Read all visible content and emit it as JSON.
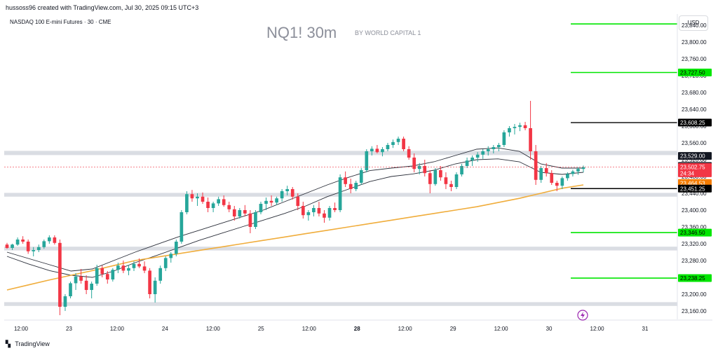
{
  "header": {
    "created_text": "hussoss96 created with TradingView.com, Jul 30, 2025 09:15 UTC+3",
    "symbol": "NASDAQ 100 E-mini Futures · 30 · CME"
  },
  "title": {
    "main": "NQ1! 30m",
    "sub": "BY WORLD CAPITAL 1"
  },
  "currency_label": "USD",
  "footer": {
    "brand": "TradingView"
  },
  "colors": {
    "bull": "#26a69a",
    "bear": "#f23645",
    "ma_200": "#f0ad3c",
    "ma_dark": "#2a2e39",
    "support_zone": "#dadde3",
    "target_green": "#00e600"
  },
  "icons": {
    "flash": "flash-icon",
    "logo": "tradingview-logo-icon"
  },
  "chart_data": {
    "type": "candlestick",
    "y_axis": {
      "ylim": [
        23140,
        23860
      ],
      "ticks": [
        "23,160.00",
        "23,200.00",
        "23,240.00",
        "23,280.00",
        "23,320.00",
        "23,360.00",
        "23,400.00",
        "23,440.00",
        "23,480.00",
        "23,520.00",
        "23,560.00",
        "23,600.00",
        "23,640.00",
        "23,680.00",
        "23,720.00",
        "23,760.00",
        "23,800.00",
        "23,840.00"
      ]
    },
    "x_axis": {
      "labels": [
        "12:00",
        "23",
        "12:00",
        "24",
        "12:00",
        "25",
        "12:00",
        "28",
        "12:00",
        "29",
        "12:00",
        "30",
        "12:00",
        "31"
      ]
    },
    "price_labels": [
      {
        "value": 23608.25,
        "text": "23,608.25",
        "style": "black"
      },
      {
        "value": 23529.0,
        "text": "23,529.00",
        "style": "dark"
      },
      {
        "value": 23504.96,
        "text": "23,504.96",
        "style": "dark"
      },
      {
        "value": 23502.75,
        "text": "23,502.75",
        "style": "red",
        "countdown": "24:34"
      },
      {
        "value": 23464.53,
        "text": "23,464.53",
        "style": "orange"
      },
      {
        "value": 23451.25,
        "text": "23,451.25",
        "style": "black"
      },
      {
        "value": 23727.5,
        "text": "23,727.50",
        "style": "green"
      },
      {
        "value": 23346.5,
        "text": "23,346.50",
        "style": "green"
      },
      {
        "value": 23238.25,
        "text": "23,238.25",
        "style": "green"
      }
    ],
    "levels": [
      {
        "value": 23843,
        "color": "green"
      },
      {
        "value": 23727.5,
        "color": "green"
      },
      {
        "value": 23608.25,
        "color": "black"
      },
      {
        "value": 23451.25,
        "color": "black"
      },
      {
        "value": 23346.5,
        "color": "green"
      },
      {
        "value": 23238.25,
        "color": "green"
      }
    ],
    "zones": [
      {
        "from": 23531,
        "to": 23541
      },
      {
        "from": 23432,
        "to": 23441
      },
      {
        "from": 23304,
        "to": 23313
      },
      {
        "from": 23172,
        "to": 23181
      }
    ],
    "candles": [
      [
        23318,
        23322,
        23308,
        23310
      ],
      [
        23310,
        23320,
        23305,
        23318
      ],
      [
        23318,
        23335,
        23315,
        23330
      ],
      [
        23330,
        23338,
        23320,
        23325
      ],
      [
        23325,
        23330,
        23296,
        23302
      ],
      [
        23302,
        23312,
        23290,
        23305
      ],
      [
        23305,
        23318,
        23300,
        23312
      ],
      [
        23312,
        23330,
        23308,
        23326
      ],
      [
        23326,
        23340,
        23320,
        23335
      ],
      [
        23335,
        23340,
        23318,
        23322
      ],
      [
        23322,
        23330,
        23150,
        23170
      ],
      [
        23170,
        23200,
        23160,
        23195
      ],
      [
        23195,
        23230,
        23190,
        23226
      ],
      [
        23226,
        23250,
        23210,
        23242
      ],
      [
        23242,
        23260,
        23225,
        23232
      ],
      [
        23232,
        23245,
        23200,
        23210
      ],
      [
        23210,
        23230,
        23190,
        23225
      ],
      [
        23225,
        23270,
        23220,
        23262
      ],
      [
        23262,
        23268,
        23240,
        23248
      ],
      [
        23248,
        23255,
        23225,
        23235
      ],
      [
        23235,
        23262,
        23230,
        23258
      ],
      [
        23258,
        23275,
        23250,
        23268
      ],
      [
        23268,
        23280,
        23250,
        23256
      ],
      [
        23256,
        23270,
        23245,
        23262
      ],
      [
        23262,
        23278,
        23255,
        23272
      ],
      [
        23272,
        23285,
        23262,
        23266
      ],
      [
        23266,
        23278,
        23250,
        23256
      ],
      [
        23256,
        23262,
        23190,
        23200
      ],
      [
        23200,
        23240,
        23180,
        23232
      ],
      [
        23232,
        23268,
        23225,
        23262
      ],
      [
        23262,
        23290,
        23255,
        23286
      ],
      [
        23286,
        23300,
        23275,
        23296
      ],
      [
        23296,
        23330,
        23290,
        23325
      ],
      [
        23325,
        23400,
        23320,
        23395
      ],
      [
        23395,
        23445,
        23390,
        23438
      ],
      [
        23438,
        23448,
        23420,
        23428
      ],
      [
        23428,
        23440,
        23410,
        23432
      ],
      [
        23432,
        23442,
        23415,
        23420
      ],
      [
        23420,
        23430,
        23395,
        23405
      ],
      [
        23405,
        23420,
        23395,
        23416
      ],
      [
        23416,
        23432,
        23410,
        23426
      ],
      [
        23426,
        23435,
        23408,
        23412
      ],
      [
        23412,
        23420,
        23395,
        23402
      ],
      [
        23402,
        23410,
        23375,
        23385
      ],
      [
        23385,
        23405,
        23380,
        23400
      ],
      [
        23400,
        23412,
        23385,
        23392
      ],
      [
        23392,
        23400,
        23345,
        23360
      ],
      [
        23360,
        23400,
        23355,
        23395
      ],
      [
        23395,
        23420,
        23390,
        23415
      ],
      [
        23415,
        23430,
        23400,
        23422
      ],
      [
        23422,
        23435,
        23410,
        23418
      ],
      [
        23418,
        23432,
        23412,
        23428
      ],
      [
        23428,
        23450,
        23420,
        23445
      ],
      [
        23445,
        23458,
        23435,
        23450
      ],
      [
        23450,
        23455,
        23425,
        23432
      ],
      [
        23432,
        23440,
        23400,
        23410
      ],
      [
        23410,
        23420,
        23380,
        23388
      ],
      [
        23388,
        23400,
        23375,
        23395
      ],
      [
        23395,
        23412,
        23385,
        23405
      ],
      [
        23405,
        23420,
        23385,
        23392
      ],
      [
        23392,
        23400,
        23370,
        23382
      ],
      [
        23382,
        23410,
        23375,
        23405
      ],
      [
        23405,
        23418,
        23395,
        23400
      ],
      [
        23400,
        23485,
        23395,
        23478
      ],
      [
        23478,
        23492,
        23455,
        23462
      ],
      [
        23462,
        23475,
        23440,
        23450
      ],
      [
        23450,
        23470,
        23445,
        23465
      ],
      [
        23465,
        23500,
        23460,
        23495
      ],
      [
        23495,
        23545,
        23490,
        23540
      ],
      [
        23540,
        23552,
        23530,
        23546
      ],
      [
        23546,
        23555,
        23535,
        23538
      ],
      [
        23538,
        23550,
        23528,
        23545
      ],
      [
        23545,
        23560,
        23540,
        23555
      ],
      [
        23555,
        23568,
        23548,
        23562
      ],
      [
        23562,
        23575,
        23555,
        23570
      ],
      [
        23570,
        23575,
        23540,
        23545
      ],
      [
        23545,
        23552,
        23520,
        23525
      ],
      [
        23525,
        23535,
        23490,
        23498
      ],
      [
        23498,
        23512,
        23485,
        23505
      ],
      [
        23505,
        23520,
        23480,
        23488
      ],
      [
        23488,
        23495,
        23440,
        23462
      ],
      [
        23462,
        23500,
        23458,
        23495
      ],
      [
        23495,
        23505,
        23470,
        23478
      ],
      [
        23478,
        23490,
        23450,
        23462
      ],
      [
        23462,
        23470,
        23445,
        23455
      ],
      [
        23455,
        23490,
        23450,
        23485
      ],
      [
        23485,
        23510,
        23480,
        23505
      ],
      [
        23505,
        23525,
        23500,
        23518
      ],
      [
        23518,
        23530,
        23505,
        23525
      ],
      [
        23525,
        23538,
        23515,
        23532
      ],
      [
        23532,
        23545,
        23522,
        23540
      ],
      [
        23540,
        23552,
        23530,
        23545
      ],
      [
        23545,
        23555,
        23535,
        23550
      ],
      [
        23550,
        23560,
        23540,
        23555
      ],
      [
        23555,
        23590,
        23550,
        23585
      ],
      [
        23585,
        23600,
        23575,
        23595
      ],
      [
        23595,
        23605,
        23580,
        23598
      ],
      [
        23598,
        23608,
        23588,
        23602
      ],
      [
        23602,
        23610,
        23590,
        23595
      ],
      [
        23595,
        23660,
        23520,
        23540
      ],
      [
        23540,
        23555,
        23460,
        23472
      ],
      [
        23472,
        23505,
        23465,
        23500
      ],
      [
        23500,
        23512,
        23480,
        23488
      ],
      [
        23488,
        23495,
        23460,
        23465
      ],
      [
        23465,
        23470,
        23445,
        23458
      ],
      [
        23458,
        23480,
        23450,
        23476
      ],
      [
        23476,
        23490,
        23470,
        23486
      ],
      [
        23486,
        23496,
        23480,
        23492
      ],
      [
        23492,
        23502,
        23484,
        23498
      ],
      [
        23498,
        23506,
        23490,
        23502
      ]
    ],
    "ma_series": {
      "ma_200_orange": [
        23210,
        23222,
        23234,
        23245,
        23256,
        23268,
        23280,
        23288,
        23296,
        23304,
        23312,
        23320,
        23328,
        23336,
        23344,
        23352,
        23360,
        23368,
        23376,
        23384,
        23392,
        23400,
        23408,
        23418,
        23428,
        23440,
        23452,
        23460
      ],
      "ma_dark_upper": [
        23300,
        23285,
        23270,
        23255,
        23260,
        23280,
        23300,
        23318,
        23336,
        23352,
        23368,
        23384,
        23400,
        23420,
        23440,
        23460,
        23478,
        23494,
        23500,
        23505,
        23515,
        23530,
        23545,
        23548,
        23540,
        23510,
        23500,
        23500
      ],
      "ma_dark_lower": [
        23290,
        23272,
        23256,
        23245,
        23240,
        23255,
        23275,
        23292,
        23310,
        23328,
        23344,
        23360,
        23376,
        23392,
        23410,
        23432,
        23450,
        23468,
        23480,
        23486,
        23495,
        23510,
        23520,
        23522,
        23515,
        23490,
        23485,
        23490
      ]
    }
  }
}
